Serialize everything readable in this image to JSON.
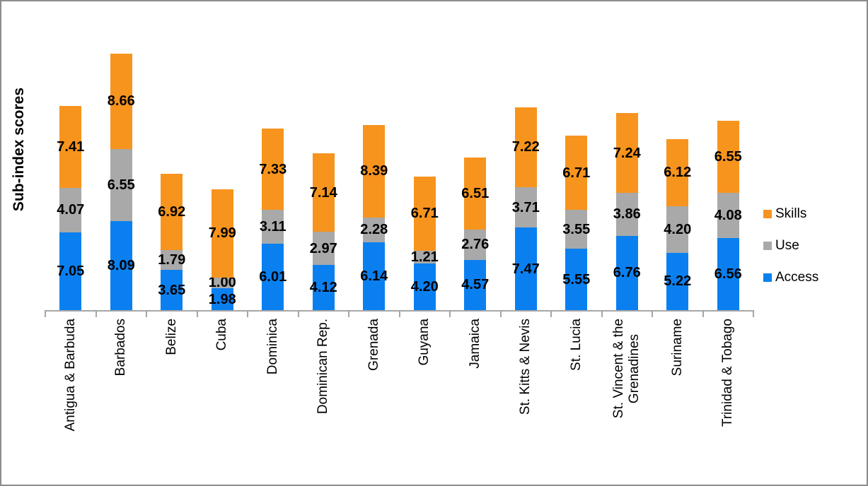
{
  "chart_data": {
    "type": "bar",
    "stacked": true,
    "title": "",
    "xlabel": "",
    "ylabel": "Sub-index scores",
    "ylim": [
      0,
      23.5
    ],
    "grid": false,
    "legend_position": "right",
    "legend_order": [
      "Skills",
      "Use",
      "Access"
    ],
    "value_label_decimals": 2,
    "axis_color": "#A6A6A6",
    "border_color": "#8C8C8C",
    "label_color": "#000000",
    "categories": [
      "Antigua & Barbuda",
      "Barbados",
      "Belize",
      "Cuba",
      "Dominica",
      "Dominican Rep.",
      "Grenada",
      "Guyana",
      "Jamaica",
      "St. Kitts & Nevis",
      "St. Lucia",
      "St. Vincent & the\nGrenadines",
      "Suriname",
      "Trinidad & Tobago"
    ],
    "series": [
      {
        "name": "Access",
        "color": "#0A80F0",
        "values": [
          7.05,
          8.09,
          3.65,
          1.98,
          6.01,
          4.12,
          6.14,
          4.2,
          4.57,
          7.47,
          5.55,
          6.76,
          5.22,
          6.56
        ]
      },
      {
        "name": "Use",
        "color": "#A9A9A9",
        "values": [
          4.07,
          6.55,
          1.79,
          1.0,
          3.11,
          2.97,
          2.28,
          1.21,
          2.76,
          3.71,
          3.55,
          3.86,
          4.2,
          4.08
        ]
      },
      {
        "name": "Skills",
        "color": "#F7941E",
        "values": [
          7.41,
          8.66,
          6.92,
          7.99,
          7.33,
          7.14,
          8.39,
          6.71,
          6.51,
          7.22,
          6.71,
          7.24,
          6.12,
          6.55
        ]
      }
    ]
  }
}
